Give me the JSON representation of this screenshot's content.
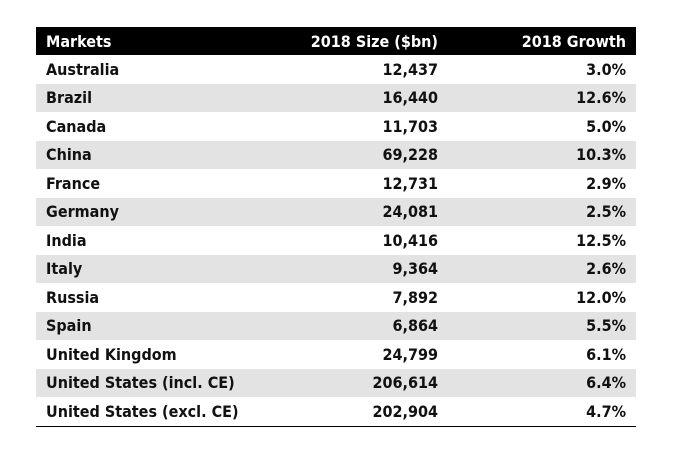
{
  "colors": {
    "header_bg": "#000000",
    "header_text": "#ffffff",
    "stripe": "#e3e3e3",
    "text": "#111111"
  },
  "table": {
    "headers": [
      "Markets",
      "2018 Size ($bn)",
      "2018 Growth"
    ],
    "rows": [
      [
        "Australia",
        "12,437",
        "3.0%"
      ],
      [
        "Brazil",
        "16,440",
        "12.6%"
      ],
      [
        "Canada",
        "11,703",
        "5.0%"
      ],
      [
        "China",
        "69,228",
        "10.3%"
      ],
      [
        "France",
        "12,731",
        "2.9%"
      ],
      [
        "Germany",
        "24,081",
        "2.5%"
      ],
      [
        "India",
        "10,416",
        "12.5%"
      ],
      [
        "Italy",
        "9,364",
        "2.6%"
      ],
      [
        "Russia",
        "7,892",
        "12.0%"
      ],
      [
        "Spain",
        "6,864",
        "5.5%"
      ],
      [
        "United Kingdom",
        "24,799",
        "6.1%"
      ],
      [
        "United States (incl. CE)",
        "206,614",
        "6.4%"
      ],
      [
        "United States (excl. CE)",
        "202,904",
        "4.7%"
      ]
    ]
  },
  "chart_data": {
    "type": "table",
    "title": "",
    "columns": [
      "Markets",
      "2018 Size ($bn)",
      "2018 Growth"
    ],
    "categories": [
      "Australia",
      "Brazil",
      "Canada",
      "China",
      "France",
      "Germany",
      "India",
      "Italy",
      "Russia",
      "Spain",
      "United Kingdom",
      "United States (incl. CE)",
      "United States (excl. CE)"
    ],
    "series": [
      {
        "name": "2018 Size ($bn)",
        "values": [
          12437,
          16440,
          11703,
          69228,
          12731,
          24081,
          10416,
          9364,
          7892,
          6864,
          24799,
          206614,
          202904
        ]
      },
      {
        "name": "2018 Growth",
        "values": [
          3.0,
          12.6,
          5.0,
          10.3,
          2.9,
          2.5,
          12.5,
          2.6,
          12.0,
          5.5,
          6.1,
          6.4,
          4.7
        ]
      }
    ]
  }
}
